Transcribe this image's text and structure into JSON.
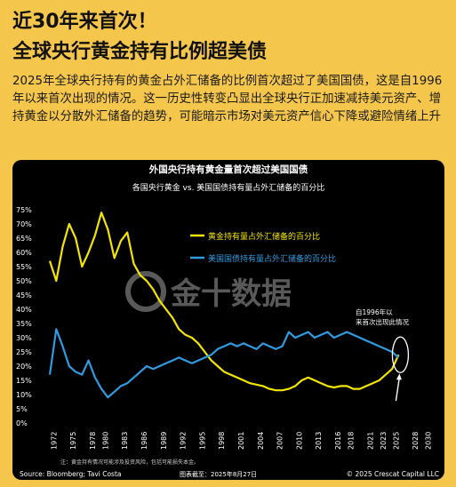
{
  "header": {
    "title_line1": "近30年来首次！",
    "title_line2": "全球央行黄金持有比例超美债"
  },
  "description": "2025年全球央行持有的黄金占外汇储备的比例首次超过了美国国债，这是自1996年以来首次出现的情况。这一历史性转变凸显出全球央行正加速减持美元资产、增持黄金以分散外汇储备的趋势，可能暗示市场对美元资产信心下降或避险情绪上升",
  "watermark": "金十数据",
  "colors": {
    "gold": "#f2e600",
    "treasury": "#2f9be0",
    "background": "#000000",
    "card": "#f4c64c"
  },
  "chart_data": {
    "type": "line",
    "title": "外国央行持有黄金量首次超过美国国债",
    "subtitle": "各国央行黄金 vs. 美国国债持有量占外汇储备的百分比",
    "xlabel": "",
    "ylabel": "",
    "ylim": [
      0,
      75
    ],
    "xlim": [
      1971,
      2031
    ],
    "x_ticks": [
      "1972",
      "1975",
      "1978",
      "1980",
      "1983",
      "1986",
      "1989",
      "1992",
      "1995",
      "1998",
      "2001",
      "2004",
      "2007",
      "2010",
      "2013",
      "2016",
      "2018",
      "2021",
      "2023",
      "2025",
      "2028",
      "2030"
    ],
    "y_ticks": [
      "0%",
      "5%",
      "10%",
      "15%",
      "20%",
      "25%",
      "30%",
      "35%",
      "40%",
      "45%",
      "50%",
      "55%",
      "60%",
      "65%",
      "70%",
      "75%"
    ],
    "grid": false,
    "legend": "top-right",
    "series": [
      {
        "name": "黄金持有量占外汇储备的百分比",
        "color": "#f2e600",
        "x": [
          1971,
          1972,
          1973,
          1974,
          1975,
          1976,
          1977,
          1978,
          1979,
          1980,
          1981,
          1982,
          1983,
          1984,
          1985,
          1986,
          1987,
          1988,
          1989,
          1990,
          1991,
          1992,
          1993,
          1994,
          1995,
          1996,
          1997,
          1998,
          1999,
          2000,
          2001,
          2002,
          2003,
          2004,
          2005,
          2006,
          2007,
          2008,
          2009,
          2010,
          2011,
          2012,
          2013,
          2014,
          2015,
          2016,
          2017,
          2018,
          2019,
          2020,
          2021,
          2022,
          2023,
          2024,
          2025
        ],
        "values": [
          57,
          50,
          62,
          70,
          65,
          55,
          60,
          66,
          74,
          68,
          58,
          64,
          67,
          56,
          52,
          50,
          47,
          43,
          40,
          37,
          33,
          31,
          30,
          28,
          25,
          22,
          20,
          18,
          17,
          16,
          15,
          14,
          13.5,
          13,
          12,
          11.5,
          11.5,
          12,
          13,
          15,
          16,
          15,
          14,
          13,
          12.5,
          13,
          13,
          12,
          12,
          13,
          14,
          15,
          17,
          19,
          24
        ]
      },
      {
        "name": "美国国债持有量占外汇储备的百分比",
        "color": "#2f9be0",
        "x": [
          1971,
          1972,
          1973,
          1974,
          1975,
          1976,
          1977,
          1978,
          1979,
          1980,
          1981,
          1982,
          1983,
          1984,
          1985,
          1986,
          1987,
          1988,
          1989,
          1990,
          1991,
          1992,
          1993,
          1994,
          1995,
          1996,
          1997,
          1998,
          1999,
          2000,
          2001,
          2002,
          2003,
          2004,
          2005,
          2006,
          2007,
          2008,
          2009,
          2010,
          2011,
          2012,
          2013,
          2014,
          2015,
          2016,
          2017,
          2018,
          2019,
          2020,
          2021,
          2022,
          2023,
          2024,
          2025
        ],
        "values": [
          17,
          33,
          27,
          20,
          18,
          17,
          22,
          16,
          12,
          9,
          11,
          13,
          14,
          16,
          18,
          20,
          19,
          20,
          21,
          22,
          23,
          22,
          21,
          22,
          23,
          24,
          26,
          27,
          28,
          27,
          28,
          27,
          26,
          28,
          27,
          26,
          27,
          32,
          30,
          31,
          32,
          30,
          31,
          32,
          30,
          31,
          32,
          31,
          30,
          29,
          28,
          27,
          26,
          25,
          23
        ]
      }
    ],
    "annotation": "自1996年以来首次出现此情况",
    "footnote": "注：黄金持有情况可能涉及投资风险，包括可能损失本金。",
    "source": "Source: Bloomberg; Tavi Costa",
    "date_note": "图表截至：2025年8月27日",
    "copyright": "© 2025 Crescat Capital LLC"
  }
}
